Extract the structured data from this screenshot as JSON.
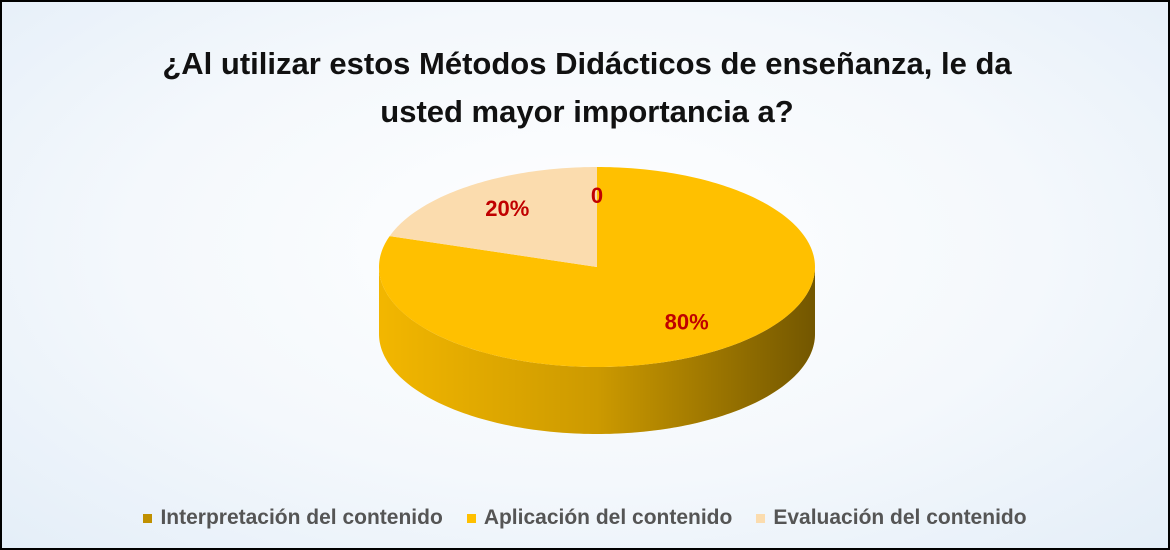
{
  "chart_data": {
    "type": "pie3d",
    "title": "¿Al utilizar estos Métodos Didácticos de enseñanza, le da usted mayor importancia a?",
    "categories": [
      "Interpretación del contenido",
      "Aplicación del contenido",
      "Evaluación del contenido"
    ],
    "values": [
      0,
      80,
      20
    ],
    "value_labels": [
      "0",
      "80%",
      "20%"
    ],
    "colors": [
      "#c09000",
      "#ffc000",
      "#fbdcae"
    ],
    "label_color": "#c00000",
    "legend": "bottom"
  }
}
